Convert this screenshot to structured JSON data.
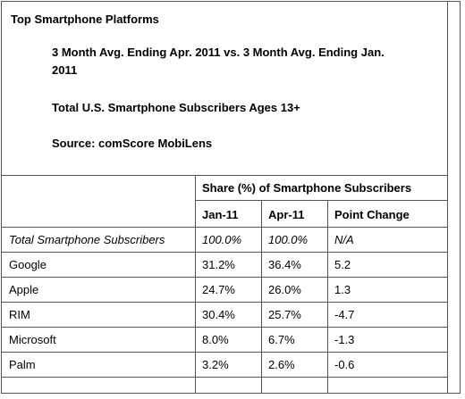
{
  "header": {
    "title": "Top Smartphone Platforms",
    "period": "3 Month Avg. Ending Apr. 2011 vs. 3 Month Avg. Ending Jan. 2011",
    "population": "Total U.S. Smartphone Subscribers Ages 13+",
    "source": "Source: comScore MobiLens"
  },
  "table": {
    "group_header": "Share (%) of Smartphone Subscribers",
    "columns": [
      "Jan-11",
      "Apr-11",
      "Point Change"
    ],
    "rows": [
      {
        "label": "Total Smartphone Subscribers",
        "jan": "100.0%",
        "apr": "100.0%",
        "change": "N/A"
      },
      {
        "label": "Google",
        "jan": "31.2%",
        "apr": "36.4%",
        "change": "5.2"
      },
      {
        "label": "Apple",
        "jan": "24.7%",
        "apr": "26.0%",
        "change": "1.3"
      },
      {
        "label": "RIM",
        "jan": "30.4%",
        "apr": "25.7%",
        "change": "-4.7"
      },
      {
        "label": "Microsoft",
        "jan": "8.0%",
        "apr": "6.7%",
        "change": "-1.3"
      },
      {
        "label": "Palm",
        "jan": "3.2%",
        "apr": "2.6%",
        "change": "-0.6"
      }
    ]
  }
}
